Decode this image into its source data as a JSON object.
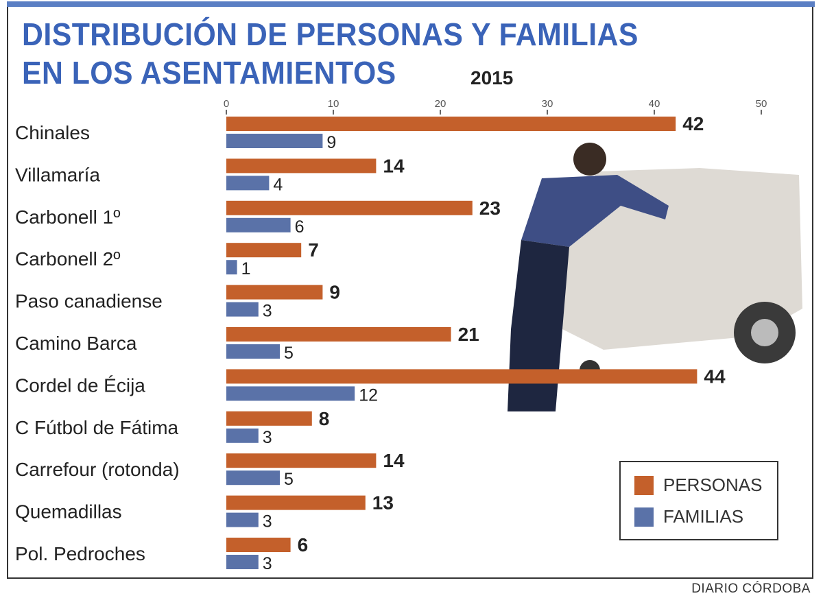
{
  "title_line1": "DISTRIBUCIÓN DE PERSONAS Y FAMILIAS",
  "title_line2": "EN LOS ASENTAMIENTOS",
  "year": "2015",
  "credit": "DIARIO CÓRDOBA",
  "colors": {
    "personas": "#c4602b",
    "familias": "#5a72a8",
    "title": "#3a63b8"
  },
  "chart_data": {
    "type": "bar",
    "orientation": "horizontal",
    "title": "DISTRIBUCIÓN DE PERSONAS Y FAMILIAS EN LOS ASENTAMIENTOS 2015",
    "categories": [
      "Chinales",
      "Villamaría",
      "Carbonell 1º",
      "Carbonell 2º",
      "Paso canadiense",
      "Camino Barca",
      "Cordel de Écija",
      "C Fútbol de Fátima",
      "Carrefour (rotonda)",
      "Quemadillas",
      "Pol. Pedroches"
    ],
    "series": [
      {
        "name": "PERSONAS",
        "values": [
          42,
          14,
          23,
          7,
          9,
          21,
          44,
          8,
          14,
          13,
          6
        ]
      },
      {
        "name": "FAMILIAS",
        "values": [
          9,
          4,
          6,
          1,
          3,
          5,
          12,
          3,
          5,
          3,
          3
        ]
      }
    ],
    "xticks": [
      0,
      10,
      20,
      30,
      40,
      50
    ],
    "xlim": [
      0,
      50
    ],
    "grid": false,
    "legend_position": "bottom-right"
  }
}
